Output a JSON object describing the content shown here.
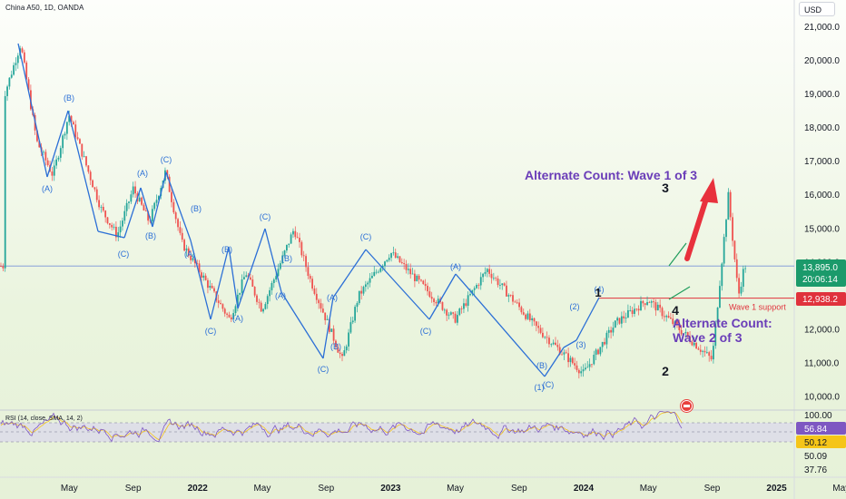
{
  "header": {
    "title": "China A50, 1D, OANDA",
    "currency": "USD",
    "rsi_label": "RSI (14, close, SMA, 14, 2)"
  },
  "chart_data": {
    "type": "candlestick",
    "instrument": "China A50",
    "interval": "1D",
    "source": "OANDA",
    "x_tick_labels": [
      "May",
      "Sep",
      "2022",
      "May",
      "Sep",
      "2023",
      "May",
      "Sep",
      "2024",
      "May",
      "Sep",
      "2025",
      "May"
    ],
    "y_tick_labels": [
      "21,000.0",
      "20,000.0",
      "19,000.0",
      "18,000.0",
      "17,000.0",
      "16,000.0",
      "15,000.0",
      "14,000.0",
      "13,000.0",
      "12,000.0",
      "11,000.0",
      "10,000.0"
    ],
    "ylim": [
      9600,
      21400
    ],
    "price_path": [
      {
        "t": "2021-01",
        "price": 19000
      },
      {
        "t": "2021-02",
        "price": 20500
      },
      {
        "t": "2021-03",
        "price": 17600
      },
      {
        "t": "2021-04",
        "price": 16600
      },
      {
        "t": "2021-05",
        "price": 18400
      },
      {
        "t": "2021-07",
        "price": 15600
      },
      {
        "t": "2021-08",
        "price": 14800
      },
      {
        "t": "2021-09",
        "price": 16200
      },
      {
        "t": "2021-10",
        "price": 15200
      },
      {
        "t": "2021-11",
        "price": 16700
      },
      {
        "t": "2021-12",
        "price": 14600
      },
      {
        "t": "2022-03",
        "price": 12300
      },
      {
        "t": "2022-04",
        "price": 13700
      },
      {
        "t": "2022-05",
        "price": 12600
      },
      {
        "t": "2022-07",
        "price": 15000
      },
      {
        "t": "2022-08",
        "price": 13500
      },
      {
        "t": "2022-10",
        "price": 11100
      },
      {
        "t": "2022-11",
        "price": 13000
      },
      {
        "t": "2023-01",
        "price": 14300
      },
      {
        "t": "2023-05",
        "price": 12300
      },
      {
        "t": "2023-07",
        "price": 13800
      },
      {
        "t": "2023-10",
        "price": 12100
      },
      {
        "t": "2024-01",
        "price": 10700
      },
      {
        "t": "2024-03",
        "price": 12200
      },
      {
        "t": "2024-05",
        "price": 12900
      },
      {
        "t": "2024-09",
        "price": 11100
      },
      {
        "t": "2024-10",
        "price": 16000
      },
      {
        "t": "2024-10-20",
        "price": 13000
      },
      {
        "t": "2024-11",
        "price": 13895
      }
    ],
    "horizontal_lines": [
      {
        "value": 13895.0,
        "color": "#5b7bd5"
      },
      {
        "value": 12938.2,
        "color": "#e0323c",
        "label": "Wave 1 support"
      }
    ],
    "price_badges": [
      {
        "value": "13,895.0",
        "sub": "20:06:14",
        "color": "#1b9a6b"
      },
      {
        "value": "12,938.2",
        "color": "#e0323c"
      }
    ],
    "wave_labels": [
      "(B)",
      "(A)",
      "(A)",
      "(B)",
      "(C)",
      "(C)",
      "(B)",
      "(A)",
      "(C)",
      "(B)",
      "(A)",
      "(C)",
      "(C)",
      "(B)",
      "(A)",
      "(A)",
      "(B)",
      "(C)",
      "(C)",
      "(A)",
      "(B)",
      "(1)",
      "(C)",
      "(2)",
      "(3)",
      "(4)",
      "4"
    ],
    "count_labels": [
      "1",
      "2",
      "3",
      "4"
    ],
    "annotations": [
      "Alternate Count: Wave 1 of 3",
      "Alternate Count:",
      "Wave 2 of 3",
      "Wave 1 support"
    ],
    "rsi": {
      "axis_labels": [
        "100.00",
        "37.76"
      ],
      "badges": [
        {
          "value": "56.84",
          "color": "#7e57c2"
        },
        {
          "value": "50.12",
          "color": "#f5c518"
        },
        {
          "value": "50.09",
          "color": "#ffffff"
        }
      ],
      "levels": [
        70,
        50,
        30
      ]
    },
    "colors": {
      "up": "#26a69a",
      "down": "#ef5350",
      "wave_line": "#2b6fd6",
      "annotation": "#6a3db8",
      "arrow": "#e8313d"
    }
  }
}
